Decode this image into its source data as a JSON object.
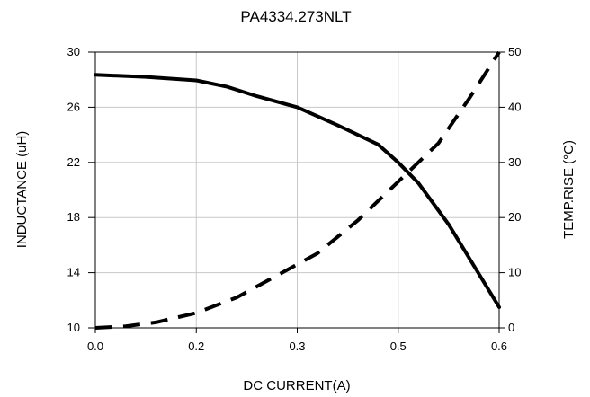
{
  "chart_data": {
    "type": "line",
    "title": "PA4334.273NLT",
    "xlabel": "DC CURRENT(A)",
    "ylabel_left": "INDUCTANCE (uH)",
    "ylabel_right": "TEMP.RISE (°C)",
    "x_ticks": [
      {
        "value": 0.0,
        "label": "0.0"
      },
      {
        "value": 0.1,
        "label": "0.2"
      },
      {
        "value": 0.2,
        "label": "0.3"
      },
      {
        "value": 0.3,
        "label": "0.5"
      },
      {
        "value": 0.4,
        "label": "0.6"
      }
    ],
    "xlim": [
      0,
      0.4
    ],
    "ylim_left": [
      10,
      30
    ],
    "ylim_right": [
      0,
      50
    ],
    "y_left_ticks": [
      "10",
      "14",
      "18",
      "22",
      "26",
      "30"
    ],
    "y_right_ticks": [
      "0",
      "10",
      "20",
      "30",
      "40",
      "50"
    ],
    "grid": true,
    "series": [
      {
        "axis": "left",
        "style": "solid",
        "color": "#000000",
        "x": [
          0.0,
          0.05,
          0.1,
          0.13,
          0.16,
          0.2,
          0.24,
          0.28,
          0.3,
          0.32,
          0.35,
          0.4
        ],
        "y": [
          28.35,
          28.2,
          27.95,
          27.5,
          26.8,
          26.0,
          24.7,
          23.3,
          22.0,
          20.5,
          17.5,
          11.5
        ]
      },
      {
        "axis": "right",
        "style": "dashed",
        "color": "#000000",
        "x": [
          0.0,
          0.03,
          0.06,
          0.1,
          0.14,
          0.18,
          0.22,
          0.26,
          0.3,
          0.34,
          0.37,
          0.4
        ],
        "y": [
          0.0,
          0.3,
          1.0,
          2.7,
          5.5,
          9.5,
          13.5,
          19.5,
          26.5,
          33.5,
          41.5,
          50.0
        ]
      }
    ]
  }
}
